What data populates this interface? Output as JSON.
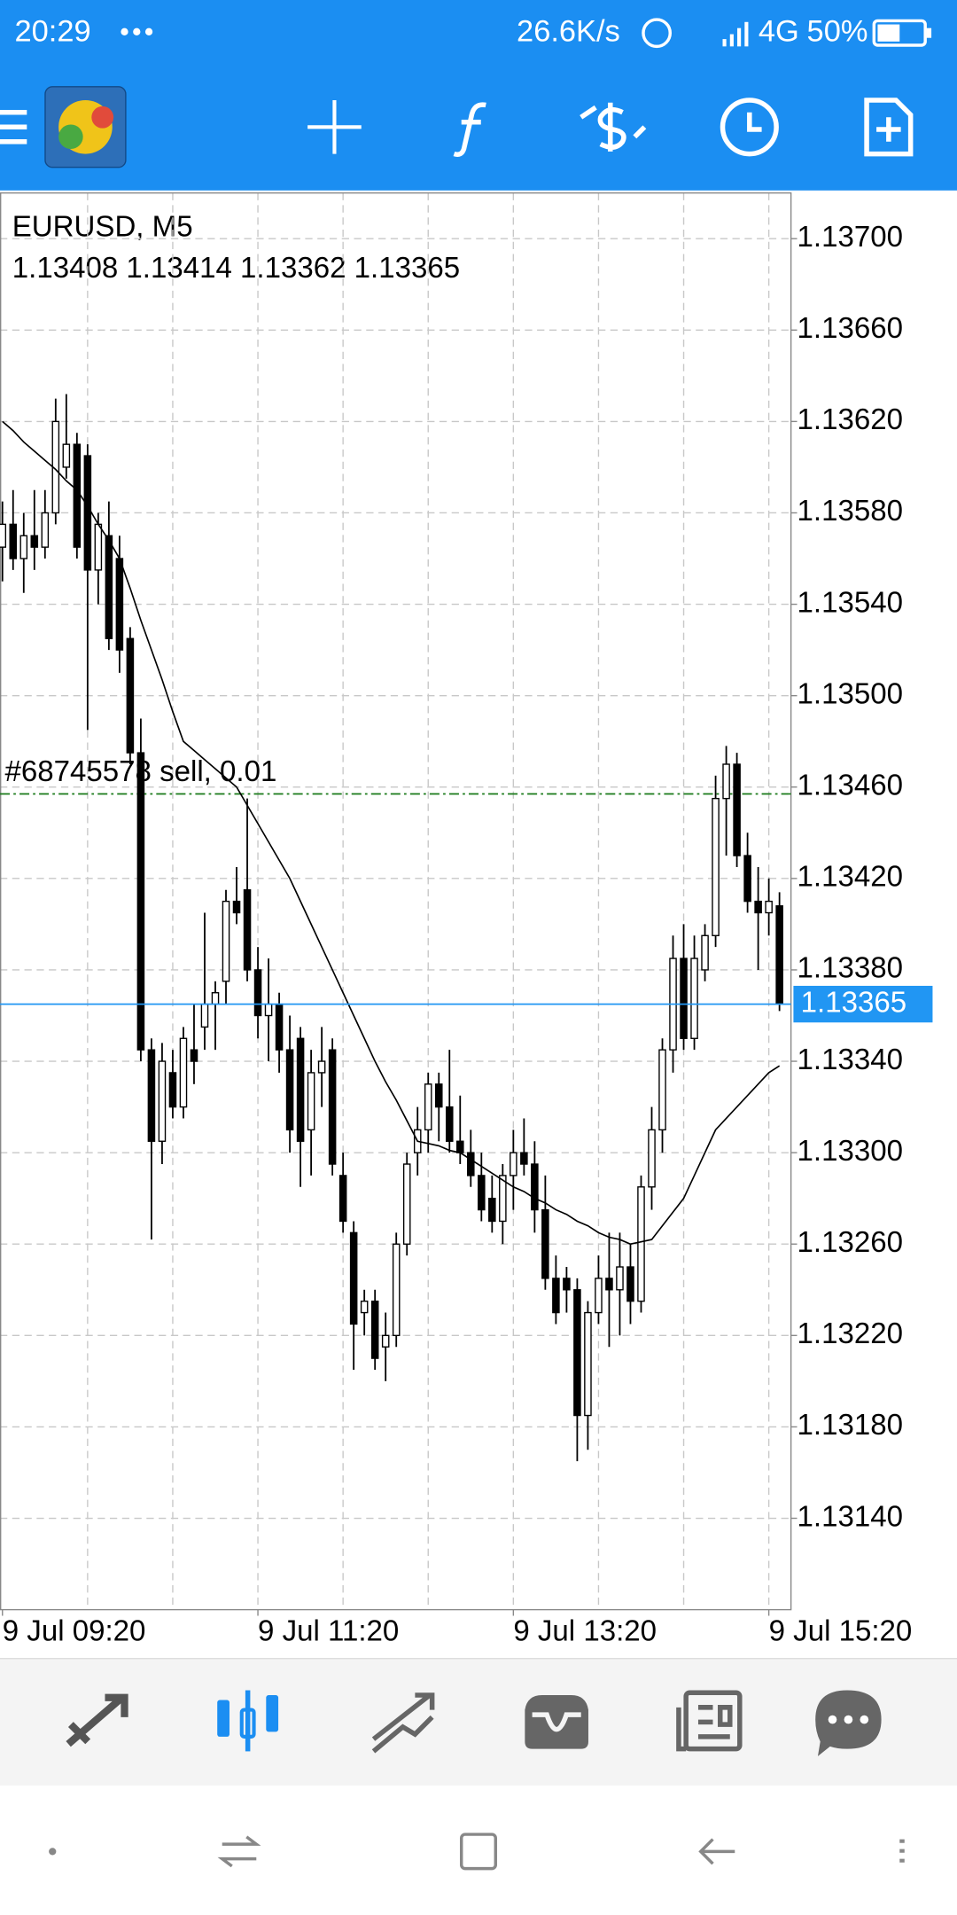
{
  "status_bar": {
    "time": "20:29",
    "speed": "26.6K/s",
    "network": "4G",
    "battery": "50%"
  },
  "chart_data": {
    "type": "candlestick",
    "title": "EURUSD, M5",
    "subtitle": "1.13408 1.13414 1.13362 1.13365",
    "categories": [
      "9 Jul 09:20",
      null,
      null,
      null,
      null,
      null,
      null,
      null,
      null,
      null,
      null,
      null,
      null,
      null,
      null,
      null,
      null,
      null,
      null,
      null,
      null,
      null,
      null,
      null,
      "9 Jul 11:20",
      null,
      null,
      null,
      null,
      null,
      null,
      null,
      null,
      null,
      null,
      null,
      null,
      null,
      null,
      null,
      null,
      null,
      null,
      null,
      null,
      null,
      null,
      null,
      "9 Jul 13:20",
      null,
      null,
      null,
      null,
      null,
      null,
      null,
      null,
      null,
      null,
      null,
      null,
      null,
      null,
      null,
      null,
      null,
      null,
      null,
      null,
      null,
      null,
      null,
      "9 Jul 15:20",
      null
    ],
    "open": [
      1.13565,
      1.13575,
      1.1356,
      1.1357,
      1.13565,
      1.1358,
      1.136,
      1.1361,
      1.13605,
      1.13555,
      1.1357,
      1.1356,
      1.13525,
      1.13475,
      1.13345,
      1.13305,
      1.13335,
      1.1332,
      1.13345,
      1.13355,
      1.13365,
      1.13375,
      1.1341,
      1.13415,
      1.1338,
      1.1336,
      1.13365,
      1.13345,
      1.1335,
      1.1331,
      1.13335,
      1.13345,
      1.1329,
      1.13265,
      1.1323,
      1.13235,
      1.13215,
      1.1322,
      1.1326,
      1.133,
      1.1331,
      1.1333,
      1.1332,
      1.13305,
      1.133,
      1.1329,
      1.1328,
      1.1327,
      1.1329,
      1.133,
      1.13295,
      1.13275,
      1.13245,
      1.13245,
      1.1324,
      1.13185,
      1.1323,
      1.13245,
      1.1324,
      1.1325,
      1.13235,
      1.13285,
      1.1331,
      1.13345,
      1.13385,
      1.1335,
      1.1338,
      1.13395,
      1.13455,
      1.1347,
      1.1343,
      1.1341,
      1.13405,
      1.13408
    ],
    "high": [
      1.13585,
      1.1359,
      1.1358,
      1.1359,
      1.1359,
      1.1363,
      1.13632,
      1.13615,
      1.1361,
      1.1358,
      1.13585,
      1.1357,
      1.1353,
      1.1349,
      1.1335,
      1.13348,
      1.13345,
      1.13355,
      1.13365,
      1.13405,
      1.13375,
      1.13415,
      1.13425,
      1.13455,
      1.1339,
      1.13385,
      1.1337,
      1.1336,
      1.13355,
      1.13345,
      1.13355,
      1.1335,
      1.133,
      1.1327,
      1.1324,
      1.1324,
      1.1323,
      1.13265,
      1.133,
      1.1332,
      1.13335,
      1.13335,
      1.13345,
      1.13325,
      1.1331,
      1.133,
      1.1329,
      1.13295,
      1.1331,
      1.13315,
      1.13305,
      1.1329,
      1.13255,
      1.1325,
      1.13245,
      1.13235,
      1.13255,
      1.13265,
      1.13265,
      1.1326,
      1.1329,
      1.1332,
      1.1335,
      1.13395,
      1.134,
      1.13395,
      1.134,
      1.13465,
      1.13478,
      1.13475,
      1.1344,
      1.13425,
      1.1342,
      1.13414
    ],
    "low": [
      1.1355,
      1.13555,
      1.13545,
      1.13555,
      1.1356,
      1.13575,
      1.13595,
      1.1356,
      1.13485,
      1.1354,
      1.1352,
      1.1351,
      1.1347,
      1.1334,
      1.13262,
      1.13295,
      1.13315,
      1.13315,
      1.1333,
      1.13345,
      1.13345,
      1.13365,
      1.134,
      1.13375,
      1.1335,
      1.1334,
      1.13335,
      1.133,
      1.13285,
      1.1329,
      1.1332,
      1.1329,
      1.13265,
      1.13205,
      1.1322,
      1.13205,
      1.132,
      1.13215,
      1.13255,
      1.1329,
      1.133,
      1.13305,
      1.133,
      1.13295,
      1.13285,
      1.1327,
      1.13265,
      1.1326,
      1.13275,
      1.1329,
      1.13265,
      1.1324,
      1.13225,
      1.1323,
      1.13165,
      1.1317,
      1.13225,
      1.13215,
      1.1322,
      1.13225,
      1.1323,
      1.13275,
      1.133,
      1.13335,
      1.13345,
      1.13345,
      1.13375,
      1.1339,
      1.1343,
      1.13425,
      1.13405,
      1.1338,
      1.13395,
      1.13362
    ],
    "close": [
      1.13575,
      1.1356,
      1.1357,
      1.13565,
      1.1358,
      1.1362,
      1.1361,
      1.13565,
      1.13555,
      1.13575,
      1.13525,
      1.1352,
      1.13475,
      1.13345,
      1.13305,
      1.1334,
      1.1332,
      1.1335,
      1.1334,
      1.13365,
      1.1337,
      1.1341,
      1.13405,
      1.1338,
      1.1336,
      1.13365,
      1.13345,
      1.1331,
      1.13305,
      1.13335,
      1.1334,
      1.13295,
      1.1327,
      1.13225,
      1.13235,
      1.1321,
      1.1322,
      1.1326,
      1.13295,
      1.1331,
      1.1333,
      1.1332,
      1.13305,
      1.133,
      1.1329,
      1.13275,
      1.1327,
      1.1329,
      1.133,
      1.13295,
      1.13275,
      1.13245,
      1.1323,
      1.1324,
      1.13185,
      1.1323,
      1.13245,
      1.1324,
      1.1325,
      1.13235,
      1.13285,
      1.1331,
      1.13345,
      1.13385,
      1.1335,
      1.13385,
      1.13395,
      1.13455,
      1.1347,
      1.1343,
      1.1341,
      1.13405,
      1.1341,
      1.13365
    ],
    "ma": [
      1.1362,
      1.13616,
      1.13611,
      1.13607,
      1.13603,
      1.13599,
      1.13594,
      1.1359,
      1.13583,
      1.13575,
      1.13568,
      1.1356,
      1.13547,
      1.13533,
      1.1352,
      1.13507,
      1.13493,
      1.1348,
      1.13476,
      1.13472,
      1.13468,
      1.13464,
      1.1346,
      1.13452,
      1.13444,
      1.13436,
      1.13428,
      1.1342,
      1.1341,
      1.134,
      1.1339,
      1.1338,
      1.1337,
      1.1336,
      1.1335,
      1.1334,
      1.13331,
      1.13323,
      1.13314,
      1.13305,
      1.13304,
      1.13303,
      1.13301,
      1.133,
      1.13297,
      1.13294,
      1.13291,
      1.13288,
      1.13285,
      1.13283,
      1.1328,
      1.13278,
      1.13275,
      1.13273,
      1.1327,
      1.13268,
      1.13265,
      1.13263,
      1.13262,
      1.1326,
      1.13261,
      1.13262,
      1.13268,
      1.13274,
      1.1328,
      1.1329,
      1.133,
      1.1331,
      1.13315,
      1.1332,
      1.13325,
      1.1333,
      1.13335,
      1.13338
    ],
    "ylim": [
      1.131,
      1.1372
    ],
    "yticks": [
      {
        "value": 1.137,
        "label": "1.13700"
      },
      {
        "value": 1.1366,
        "label": "1.13660"
      },
      {
        "value": 1.1362,
        "label": "1.13620"
      },
      {
        "value": 1.1358,
        "label": "1.13580"
      },
      {
        "value": 1.1354,
        "label": "1.13540"
      },
      {
        "value": 1.135,
        "label": "1.13500"
      },
      {
        "value": 1.1346,
        "label": "1.13460"
      },
      {
        "value": 1.1342,
        "label": "1.13420"
      },
      {
        "value": 1.1338,
        "label": "1.13380"
      },
      {
        "value": 1.1334,
        "label": "1.13340"
      },
      {
        "value": 1.133,
        "label": "1.13300"
      },
      {
        "value": 1.1326,
        "label": "1.13260"
      },
      {
        "value": 1.1322,
        "label": "1.13220"
      },
      {
        "value": 1.1318,
        "label": "1.13180"
      },
      {
        "value": 1.1314,
        "label": "1.13140"
      }
    ],
    "grid": true,
    "order_line": {
      "label": "#68745578 sell, 0.01",
      "value": 1.13457,
      "color": "#1a7a1a"
    },
    "current_price": {
      "value": 1.13365,
      "label": "1.13365",
      "color": "#2196f3"
    }
  }
}
